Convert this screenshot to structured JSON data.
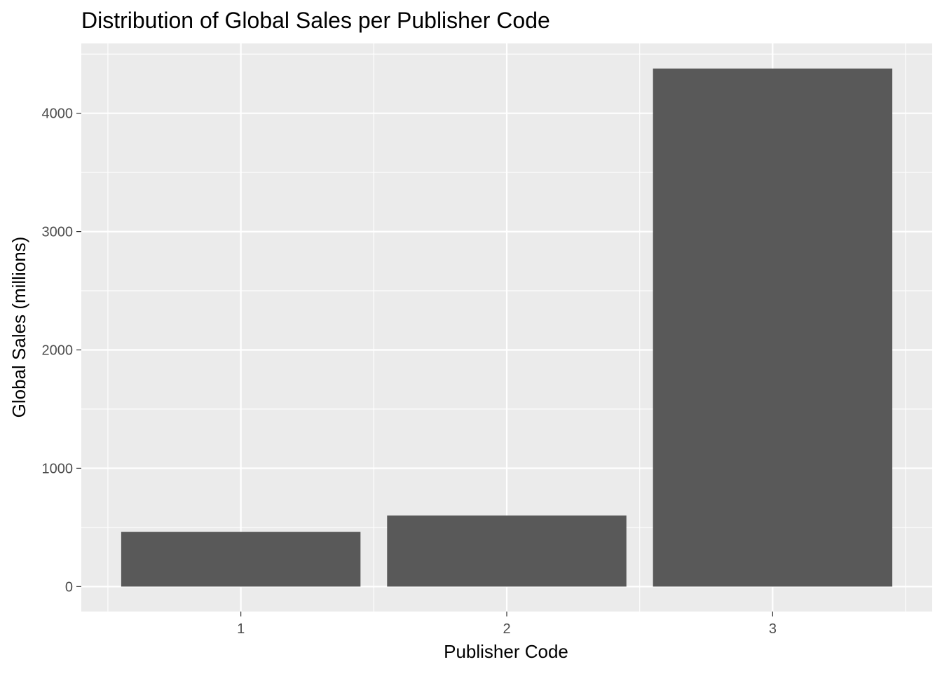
{
  "chart_data": {
    "type": "bar",
    "title": "Distribution of Global Sales per Publisher Code",
    "xlabel": "Publisher Code",
    "ylabel": "Global Sales (millions)",
    "categories": [
      "1",
      "2",
      "3"
    ],
    "values": [
      463,
      601,
      4378
    ],
    "ylim": [
      -211,
      4590
    ],
    "yticks": [
      0,
      1000,
      2000,
      3000,
      4000
    ],
    "grid": true,
    "legend": "none",
    "colors": {
      "panel_background": "#ebebeb",
      "gridline": "#ffffff",
      "bar_fill": "#595959",
      "tick_label": "#4d4d4d"
    }
  }
}
